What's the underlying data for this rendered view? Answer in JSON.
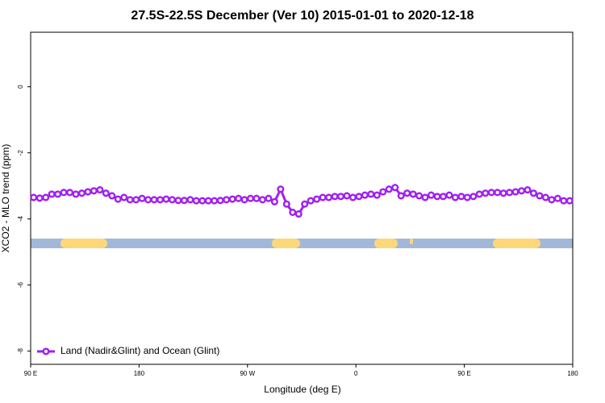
{
  "chart_data": {
    "type": "line",
    "title": "27.5S-22.5S December (Ver 10)   2015-01-01 to 2020-12-18",
    "x_label": "Longitude (deg E)",
    "y_label": "XCO2 - MLO trend (ppm)",
    "xlim": [
      90,
      540
    ],
    "xticks": [
      {
        "value": 90,
        "label": "90 E"
      },
      180,
      {
        "value": 270,
        "label": "90 W"
      },
      {
        "value": 360,
        "label": "0"
      },
      {
        "value": 450,
        "label": "90 E"
      },
      {
        "value": 540,
        "label": "180"
      }
    ],
    "ylim": [
      -8.4,
      1.65
    ],
    "yticks": [
      0,
      -2,
      -4,
      -6,
      -8
    ],
    "legend": "bottom-left",
    "x": [
      92.5,
      97.5,
      102.5,
      107.5,
      112.5,
      117.5,
      122.5,
      127.5,
      132.5,
      137.5,
      142.5,
      147.5,
      152.5,
      157.5,
      162.5,
      167.5,
      172.5,
      177.5,
      182.5,
      187.5,
      192.5,
      197.5,
      202.5,
      207.5,
      212.5,
      217.5,
      222.5,
      227.5,
      232.5,
      237.5,
      242.5,
      247.5,
      252.5,
      257.5,
      262.5,
      267.5,
      272.5,
      277.5,
      282.5,
      287.5,
      292.5,
      297.5,
      302.5,
      307.5,
      312.5,
      317.5,
      322.5,
      327.5,
      332.5,
      337.5,
      342.5,
      347.5,
      352.5,
      357.5,
      362.5,
      367.5,
      372.5,
      377.5,
      382.5,
      387.5,
      392.5,
      397.5,
      402.5,
      407.5,
      412.5,
      417.5,
      422.5,
      427.5,
      432.5,
      437.5,
      442.5,
      447.5,
      452.5,
      457.5,
      462.5,
      467.5,
      472.5,
      477.5,
      482.5,
      487.5,
      492.5,
      497.5,
      502.5,
      507.5,
      512.5,
      517.5,
      522.5,
      527.5,
      532.5,
      537.5
    ],
    "series": [
      {
        "name": "Land (Nadir&Glint) and Ocean (Glint)",
        "color": "#a020f0",
        "values": [
          -3.35,
          -3.37,
          -3.35,
          -3.25,
          -3.25,
          -3.2,
          -3.2,
          -3.25,
          -3.22,
          -3.18,
          -3.15,
          -3.12,
          -3.22,
          -3.3,
          -3.4,
          -3.35,
          -3.42,
          -3.42,
          -3.38,
          -3.42,
          -3.42,
          -3.42,
          -3.4,
          -3.42,
          -3.44,
          -3.44,
          -3.42,
          -3.45,
          -3.45,
          -3.45,
          -3.45,
          -3.44,
          -3.42,
          -3.4,
          -3.38,
          -3.42,
          -3.38,
          -3.38,
          -3.42,
          -3.38,
          -3.48,
          -3.1,
          -3.55,
          -3.8,
          -3.85,
          -3.55,
          -3.45,
          -3.4,
          -3.35,
          -3.35,
          -3.32,
          -3.32,
          -3.3,
          -3.35,
          -3.32,
          -3.28,
          -3.25,
          -3.28,
          -3.18,
          -3.1,
          -3.05,
          -3.3,
          -3.22,
          -3.25,
          -3.3,
          -3.35,
          -3.28,
          -3.32,
          -3.32,
          -3.28,
          -3.35,
          -3.32,
          -3.35,
          -3.32,
          -3.25,
          -3.22,
          -3.2,
          -3.2,
          -3.22,
          -3.2,
          -3.18,
          -3.15,
          -3.12,
          -3.22,
          -3.3,
          -3.35,
          -3.42,
          -3.38,
          -3.45,
          -3.45
        ]
      }
    ]
  }
}
